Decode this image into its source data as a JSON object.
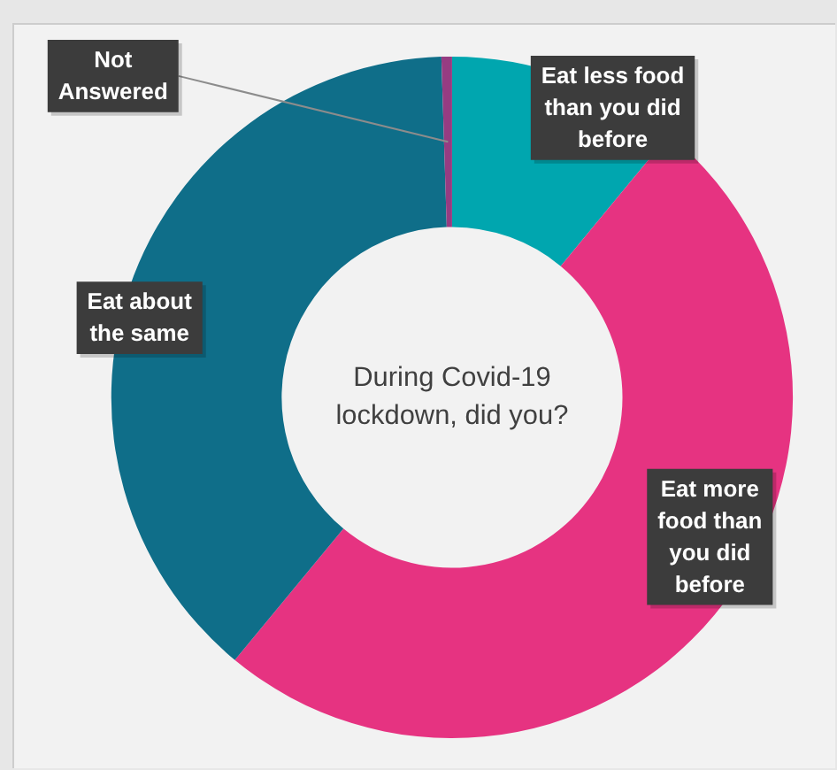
{
  "chart_data": {
    "type": "donut",
    "title": "During Covid-19 lockdown, did you?",
    "categories": [
      "Eat less food than you did before",
      "Eat more food than you did before",
      "Eat about the same",
      "Not Answered"
    ],
    "values": [
      11,
      50,
      38.5,
      0.5
    ],
    "colors": [
      "#00a6af",
      "#e63381",
      "#0f6e89",
      "#963c82"
    ],
    "legend": false
  }
}
